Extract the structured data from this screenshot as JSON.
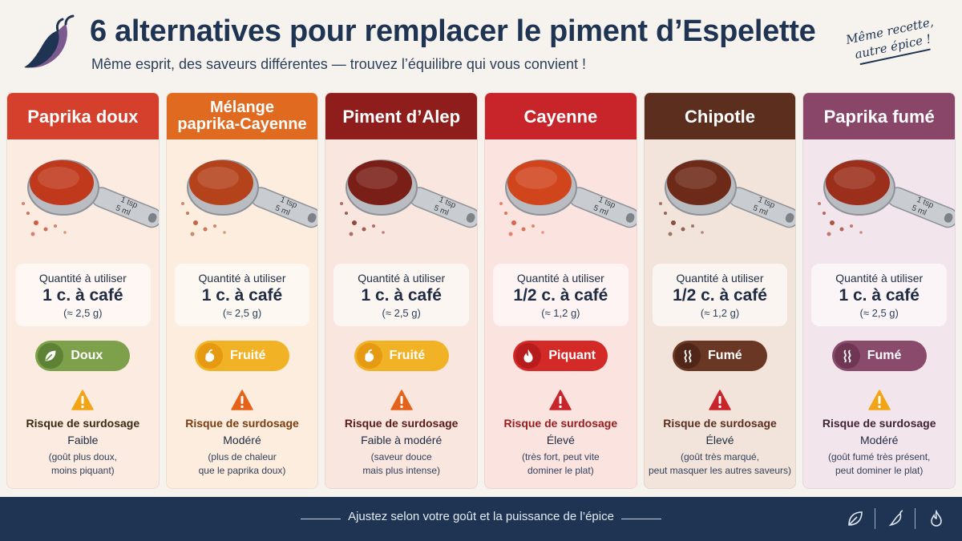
{
  "header": {
    "title": "6 alternatives pour remplacer le piment d’Espelette",
    "subtitle": "Même esprit, des saveurs différentes — trouvez l’équilibre qui vous convient !",
    "stamp_line1": "Même recette,",
    "stamp_line2": "autre épice !"
  },
  "common": {
    "qty_label": "Quantité à utiliser",
    "risk_label": "Risque de surdosage",
    "spoon_text_1": "1 tsp",
    "spoon_text_2": "5 ml"
  },
  "cards": [
    {
      "name_line1": "Paprika doux",
      "name_line2": "",
      "head_color": "#d4402b",
      "bg_color": "#fbebe0",
      "powder_color": "#c0391c",
      "qty": "1 c. à café",
      "grams": "(≈ 2,5 g)",
      "flavor": "Doux",
      "flavor_icon": "leaf-icon",
      "pill_color": "#7da14a",
      "pill_dark": "#5d8235",
      "risk_level": "Faible",
      "risk_color": "#3b2a12",
      "warn_color": "#f2a417",
      "note_line1": "(goût plus doux,",
      "note_line2": "moins piquant)"
    },
    {
      "name_line1": "Mélange",
      "name_line2": "paprika-Cayenne",
      "head_color": "#e06a1f",
      "bg_color": "#fcedde",
      "powder_color": "#b4431c",
      "qty": "1 c. à café",
      "grams": "(≈ 2,5 g)",
      "flavor": "Fruité",
      "flavor_icon": "pepper-icon",
      "pill_color": "#f1b226",
      "pill_dark": "#e69a12",
      "risk_level": "Modéré",
      "risk_color": "#7a3b10",
      "warn_color": "#e5621a",
      "note_line1": "(plus de chaleur",
      "note_line2": "que le paprika doux)"
    },
    {
      "name_line1": "Piment d’Alep",
      "name_line2": "",
      "head_color": "#8f1d1c",
      "bg_color": "#f8e6df",
      "powder_color": "#7a1f17",
      "qty": "1 c. à café",
      "grams": "(≈ 2,5 g)",
      "flavor": "Fruité",
      "flavor_icon": "pepper-icon",
      "pill_color": "#f1b226",
      "pill_dark": "#e69a12",
      "risk_level": "Faible à modéré",
      "risk_color": "#5a1b16",
      "warn_color": "#e5621a",
      "note_line1": "(saveur douce",
      "note_line2": "mais plus intense)"
    },
    {
      "name_line1": "Cayenne",
      "name_line2": "",
      "head_color": "#c8252a",
      "bg_color": "#fbe3e0",
      "powder_color": "#d1451d",
      "qty": "1/2 c. à café",
      "grams": "(≈ 1,2 g)",
      "flavor": "Piquant",
      "flavor_icon": "flame-icon",
      "pill_color": "#d42a27",
      "pill_dark": "#b61d1c",
      "risk_level": "Élevé",
      "risk_color": "#9a1b1b",
      "warn_color": "#c8252a",
      "note_line1": "(très fort, peut vite",
      "note_line2": "dominer le plat)"
    },
    {
      "name_line1": "Chipotle",
      "name_line2": "",
      "head_color": "#5b2e1e",
      "bg_color": "#f2e4da",
      "powder_color": "#6e2a18",
      "qty": "1/2 c. à café",
      "grams": "(≈ 1,2 g)",
      "flavor": "Fumé",
      "flavor_icon": "smoke-icon",
      "pill_color": "#6a3724",
      "pill_dark": "#4f2617",
      "risk_level": "Élevé",
      "risk_color": "#5b2e1e",
      "warn_color": "#c8252a",
      "note_line1": "(goût très marqué,",
      "note_line2": "peut masquer les autres saveurs)"
    },
    {
      "name_line1": "Paprika fumé",
      "name_line2": "",
      "head_color": "#8a4668",
      "bg_color": "#f3e5ec",
      "powder_color": "#9b2f1c",
      "qty": "1 c. à café",
      "grams": "(≈ 2,5 g)",
      "flavor": "Fumé",
      "flavor_icon": "smoke-icon",
      "pill_color": "#8a4a6c",
      "pill_dark": "#6f3654",
      "risk_level": "Modéré",
      "risk_color": "#3f2233",
      "warn_color": "#f2a417",
      "note_line1": "(goût fumé très présent,",
      "note_line2": "peut dominer le plat)"
    }
  ],
  "footer": {
    "text": "Ajustez selon votre goût et la puissance de l’épice",
    "icons": [
      "leaf-icon",
      "pepper-icon",
      "flame-icon"
    ]
  }
}
